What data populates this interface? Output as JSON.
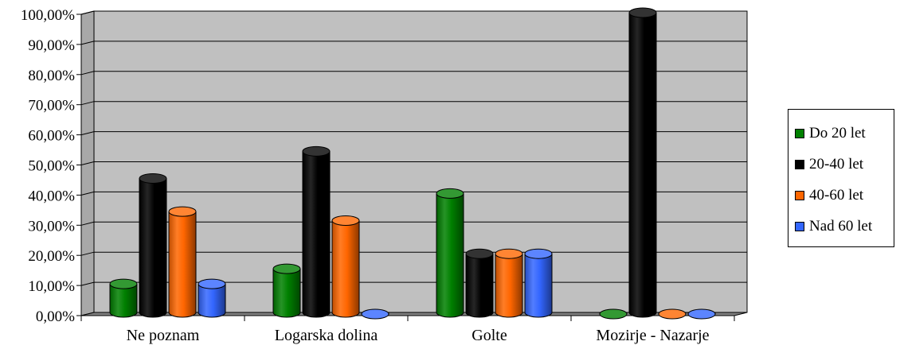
{
  "chart_data": {
    "type": "bar",
    "categories": [
      "Ne poznam",
      "Logarska dolina",
      "Golte",
      "Mozirje - Nazarje"
    ],
    "series": [
      {
        "name": "Do 20 let",
        "color": "#008000",
        "values": [
          10,
          15,
          40,
          0
        ]
      },
      {
        "name": "20-40 let",
        "color": "#000000",
        "values": [
          45,
          54,
          20,
          100
        ]
      },
      {
        "name": "40-60 let",
        "color": "#ff6600",
        "values": [
          34,
          31,
          20,
          0
        ]
      },
      {
        "name": "Nad 60 let",
        "color": "#3366ff",
        "values": [
          10,
          0,
          20,
          0
        ]
      }
    ],
    "ylim": [
      0,
      100
    ],
    "yticks": [
      "0,00%",
      "10,00%",
      "20,00%",
      "30,00%",
      "40,00%",
      "50,00%",
      "60,00%",
      "70,00%",
      "80,00%",
      "90,00%",
      "100,00%"
    ],
    "grid": true,
    "style": "3d-cylinder",
    "wall_color": "#c0c0c0",
    "legend_position": "right",
    "title": "",
    "xlabel": "",
    "ylabel": ""
  }
}
